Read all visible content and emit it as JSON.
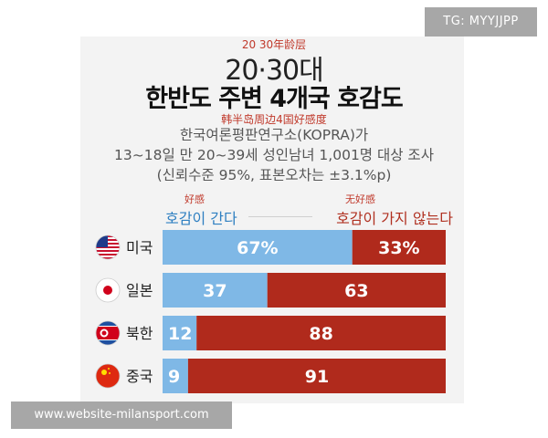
{
  "watermark": "TG: MYYJJPP",
  "footer_url": "www.website-milansport.com",
  "header": {
    "annotation_age": "20 30年龄层",
    "age_group": "20·30대",
    "title": "한반도 주변 4개국 호감도",
    "annotation_title": "韩半岛周边4国好感度",
    "source": "한국여론평판연구소(KOPRA)가",
    "survey": "13~18일 만 20~39세 성인남녀 1,001명 대상 조사",
    "confidence": "(신뢰수준 95%, 표본오차는 ±3.1%p)"
  },
  "legend": {
    "favorable": "호감이 간다",
    "favorable_annotation": "好感",
    "unfavorable": "호감이 가지 않는다",
    "unfavorable_annotation": "无好感"
  },
  "colors": {
    "favorable": "#7fb8e6",
    "unfavorable": "#b02a1c",
    "text_on_bar": "#ffffff"
  },
  "chart_data": {
    "type": "bar",
    "orientation": "horizontal",
    "stacked": true,
    "categories": [
      "미국",
      "일본",
      "북한",
      "중국"
    ],
    "category_icons": [
      "us-flag-icon",
      "japan-flag-icon",
      "north-korea-flag-icon",
      "china-flag-icon"
    ],
    "series": [
      {
        "name": "호감이 간다",
        "values": [
          67,
          37,
          12,
          9
        ]
      },
      {
        "name": "호감이 가지 않는다",
        "values": [
          33,
          63,
          88,
          91
        ]
      }
    ],
    "data_labels": [
      [
        "67%",
        "37",
        "12",
        "9"
      ],
      [
        "33%",
        "63",
        "88",
        "91"
      ]
    ],
    "xlim": [
      0,
      100
    ]
  }
}
